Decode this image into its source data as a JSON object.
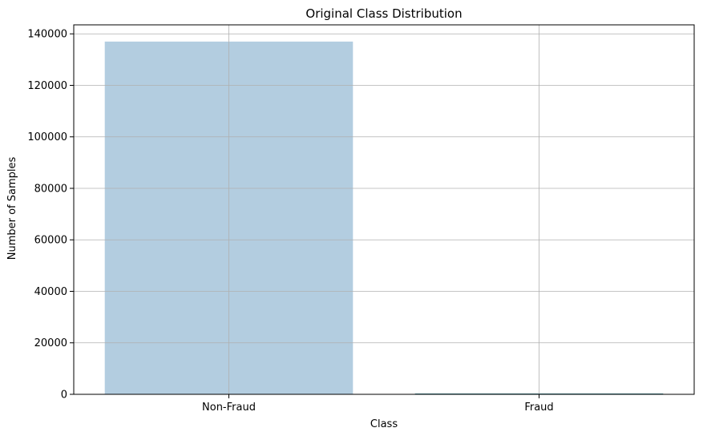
{
  "chart_data": {
    "type": "bar",
    "title": "Original Class Distribution",
    "xlabel": "Class",
    "ylabel": "Number of Samples",
    "categories": [
      "Non-Fraud",
      "Fraud"
    ],
    "values": [
      137000,
      300
    ],
    "ylim": [
      0,
      143500
    ],
    "yticks": [
      0,
      20000,
      40000,
      60000,
      80000,
      100000,
      120000,
      140000
    ],
    "ytick_labels": [
      "0",
      "20000",
      "40000",
      "60000",
      "80000",
      "100000",
      "120000",
      "140000"
    ],
    "grid": true,
    "bar_colors": [
      "#b3cde0",
      "#2f7f8f"
    ],
    "grid_color": "#b0b0b0"
  }
}
